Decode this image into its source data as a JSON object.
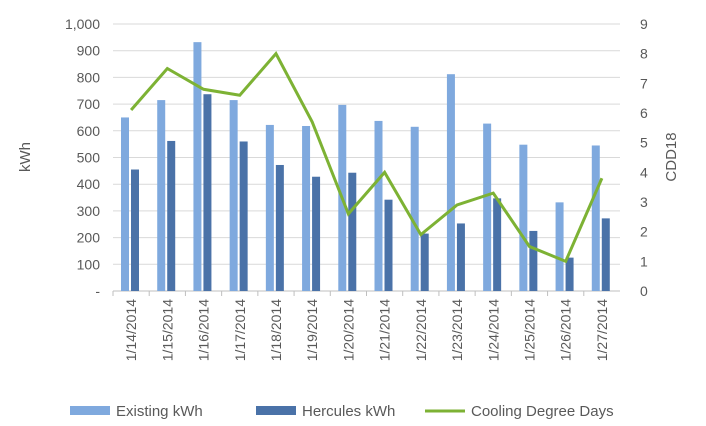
{
  "chart_data": {
    "type": "bar",
    "categories": [
      "1/14/2014",
      "1/15/2014",
      "1/16/2014",
      "1/17/2014",
      "1/18/2014",
      "1/19/2014",
      "1/20/2014",
      "1/21/2014",
      "1/22/2014",
      "1/23/2014",
      "1/24/2014",
      "1/25/2014",
      "1/26/2014",
      "1/27/2014"
    ],
    "series": [
      {
        "name": "Existing kWh",
        "type": "bar",
        "axis": "left",
        "color": "#7fa9de",
        "values": [
          650,
          715,
          932,
          715,
          622,
          618,
          697,
          637,
          615,
          812,
          627,
          548,
          332,
          545
        ]
      },
      {
        "name": "Hercules kWh",
        "type": "bar",
        "axis": "left",
        "color": "#4a72a8",
        "values": [
          455,
          562,
          737,
          560,
          472,
          428,
          443,
          342,
          215,
          253,
          347,
          225,
          125,
          272
        ]
      },
      {
        "name": "Cooling Degree Days",
        "type": "line",
        "axis": "right",
        "color": "#7db234",
        "values": [
          6.1,
          7.5,
          6.8,
          6.6,
          8.0,
          5.7,
          2.6,
          4.0,
          1.9,
          2.9,
          3.3,
          1.5,
          1.0,
          3.8
        ]
      }
    ],
    "ylabel": "kWh",
    "y2label": "CDD18",
    "ylim": [
      0,
      1000
    ],
    "y2lim": [
      0,
      9
    ],
    "yticks": [
      "-",
      "100",
      "200",
      "300",
      "400",
      "500",
      "600",
      "700",
      "800",
      "900",
      "1,000"
    ],
    "y2ticks": [
      "0",
      "1",
      "2",
      "3",
      "4",
      "5",
      "6",
      "7",
      "8",
      "9"
    ],
    "grid": true,
    "legend": "bottom"
  }
}
